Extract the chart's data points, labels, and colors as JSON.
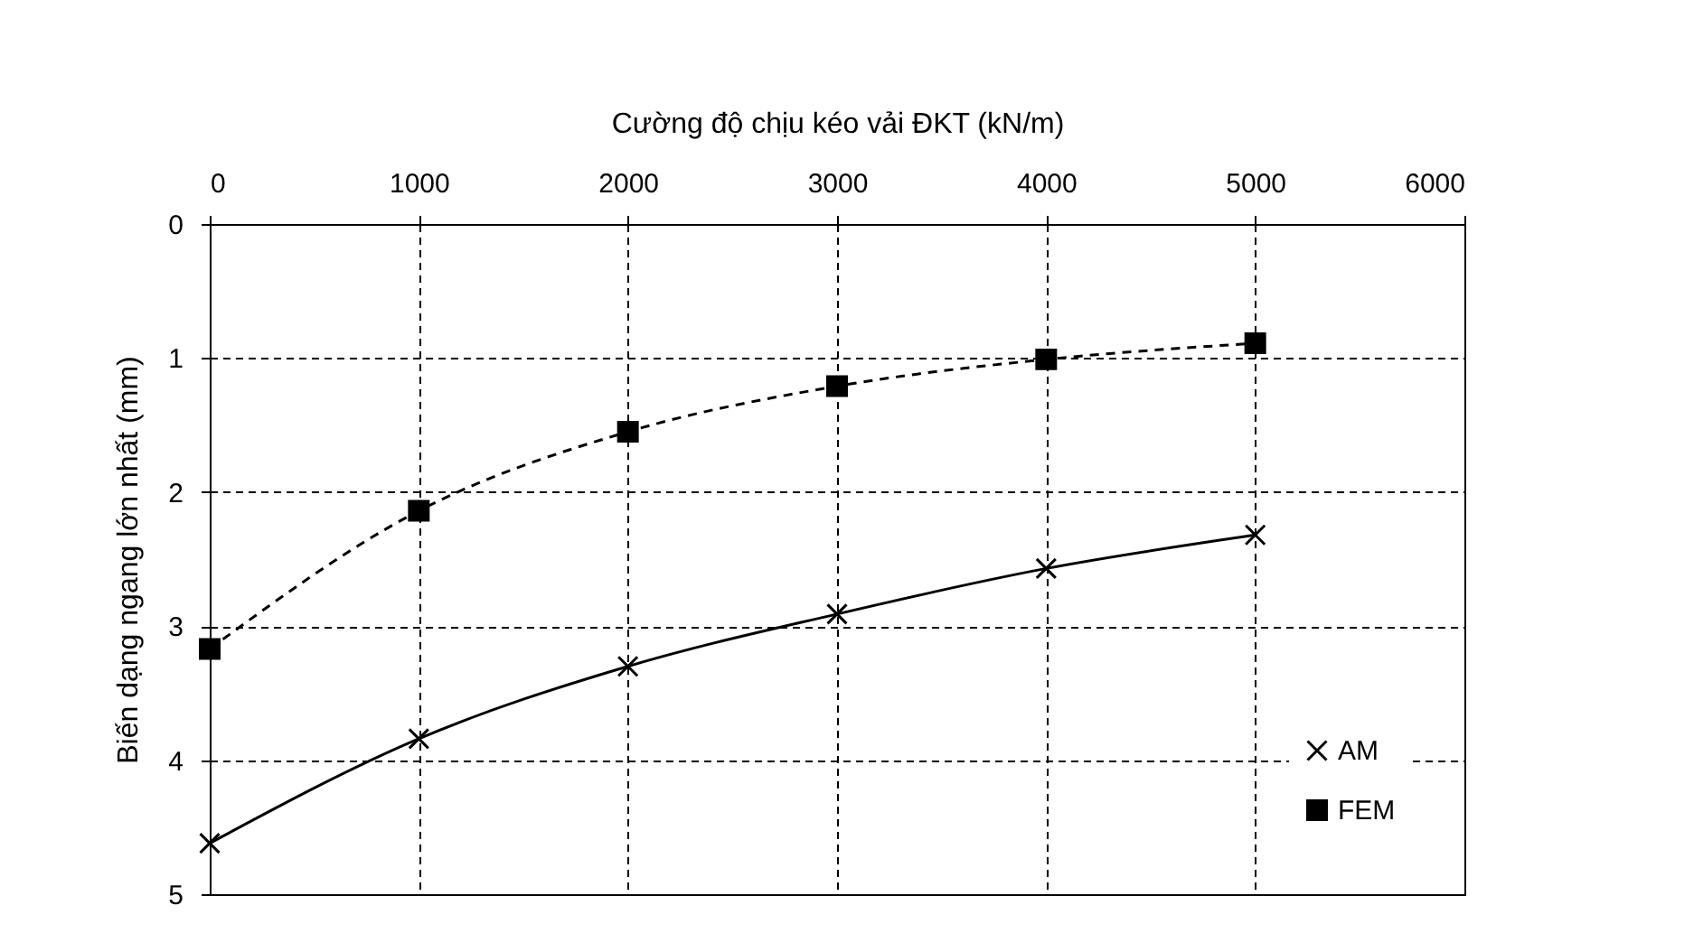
{
  "chart_data": {
    "type": "line",
    "xlabel": "Cường độ chịu kéo vải ĐKT (kN/m)",
    "ylabel": "Biến dạng ngang lớn nhất (mm)",
    "x": [
      0,
      1000,
      2000,
      3000,
      4000,
      5000
    ],
    "series": [
      {
        "name": "AM",
        "color": "#000000",
        "values": [
          4.62,
          3.84,
          3.3,
          2.91,
          2.57,
          2.32
        ],
        "marker": "cross",
        "line_style": "solid"
      },
      {
        "name": "FEM",
        "color": "#000000",
        "values": [
          3.17,
          2.14,
          1.55,
          1.21,
          1.01,
          0.89
        ],
        "marker": "square",
        "line_style": "dashed"
      }
    ],
    "xlim": [
      0,
      6000
    ],
    "xticks": [
      0,
      1000,
      2000,
      3000,
      4000,
      5000,
      6000
    ],
    "ylim": [
      5,
      0
    ],
    "yticks": [
      0,
      1,
      2,
      3,
      4,
      5
    ],
    "grid": true,
    "legend": "bottom right"
  }
}
